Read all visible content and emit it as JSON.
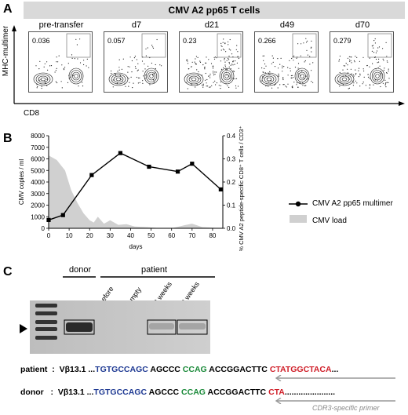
{
  "panelA": {
    "letter": "A",
    "banner": "CMV A2 pp65 T cells",
    "ylabel": "MHC-multimer",
    "xlabel": "CD8",
    "plots": [
      {
        "title": "pre-transfer",
        "value": "0.036"
      },
      {
        "title": "d7",
        "value": "0.057"
      },
      {
        "title": "d21",
        "value": "0.23"
      },
      {
        "title": "d49",
        "value": "0.266"
      },
      {
        "title": "d70",
        "value": "0.279"
      }
    ]
  },
  "panelB": {
    "letter": "B",
    "legend": {
      "multimer": "CMV A2 pp65 multimer",
      "load": "CMV load"
    }
  },
  "chart_data": {
    "type": "line",
    "xlabel": "days",
    "ylabel": "CMV copies / ml",
    "y2label": "% CMV A2 peptide-specific CD8⁺ T cells / CD3⁺ cells",
    "xlim": [
      0,
      85
    ],
    "ylim": [
      0,
      8000
    ],
    "y2lim": [
      0,
      0.4
    ],
    "xticks": [
      0,
      10,
      20,
      30,
      40,
      50,
      60,
      70,
      80
    ],
    "yticks": [
      0,
      1000,
      2000,
      3000,
      4000,
      5000,
      6000,
      7000,
      8000
    ],
    "y2ticks": [
      "0.0",
      "0.1",
      "0.2",
      "0.3",
      "0.4"
    ],
    "series": [
      {
        "name": "CMV A2 pp65 multimer",
        "axis": "right",
        "x": [
          0,
          7,
          21,
          35,
          49,
          63,
          70,
          84
        ],
        "y": [
          0.036,
          0.057,
          0.23,
          0.325,
          0.266,
          0.245,
          0.279,
          0.168
        ]
      },
      {
        "name": "CMV load",
        "axis": "left",
        "style": "area",
        "x": [
          0,
          4,
          8,
          11,
          14,
          17,
          20,
          22,
          24,
          27,
          30,
          34,
          38,
          42,
          48,
          55,
          60,
          66,
          70,
          75,
          80,
          84
        ],
        "y": [
          6300,
          5900,
          5000,
          3300,
          2200,
          1300,
          700,
          500,
          1000,
          400,
          700,
          300,
          350,
          150,
          100,
          0,
          0,
          250,
          400,
          100,
          50,
          0
        ]
      }
    ]
  },
  "panelC": {
    "letter": "C",
    "donor_label": "donor",
    "patient_label": "patient",
    "lanes": [
      "before",
      "empty",
      "8 weeks",
      "9 weeks"
    ],
    "seq_patient": {
      "label": "patient",
      "sep": ":",
      "vb": "Vβ13.1",
      "dots": "...",
      "blue": "TGTGCCAGC",
      "black1": " AGCCC ",
      "green": "CCAG",
      "black2": " ACCGGACTTC ",
      "red": "CTATGGCTACA",
      "tail": "..."
    },
    "seq_donor": {
      "label": "donor",
      "sep": ":",
      "vb": "Vβ13.1",
      "dots": "...",
      "blue": "TGTGCCAGC",
      "black1": " AGCCC ",
      "green": "CCAG",
      "black2": " ACCGGACTTC ",
      "red": "CTA",
      "tail": "......................"
    },
    "primer": "CDR3-specific primer"
  }
}
